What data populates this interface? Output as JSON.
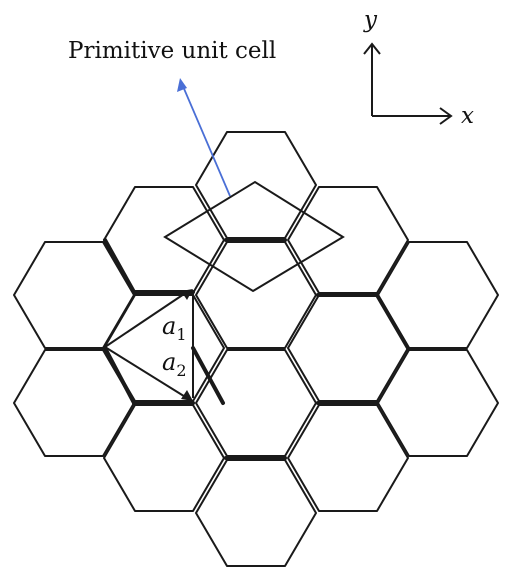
{
  "labels": {
    "cell": "Primitive unit cell",
    "axis_y": "y",
    "axis_x": "x",
    "a1_base": "a",
    "a1_sub": "1",
    "a2_base": "a",
    "a2_sub": "2"
  },
  "colors": {
    "lines": "#1a1a1a",
    "pointer": "#4a6fd6"
  },
  "hexagons": [
    {
      "id": "top"
    },
    {
      "id": "upper-left"
    },
    {
      "id": "upper-right"
    },
    {
      "id": "row2-1"
    },
    {
      "id": "row2-2"
    },
    {
      "id": "row2-3"
    },
    {
      "id": "row2-4"
    },
    {
      "id": "row3-1"
    },
    {
      "id": "row3-2"
    },
    {
      "id": "row3-3"
    },
    {
      "id": "row3-4"
    },
    {
      "id": "lower-left"
    },
    {
      "id": "lower-right"
    },
    {
      "id": "bottom"
    }
  ]
}
